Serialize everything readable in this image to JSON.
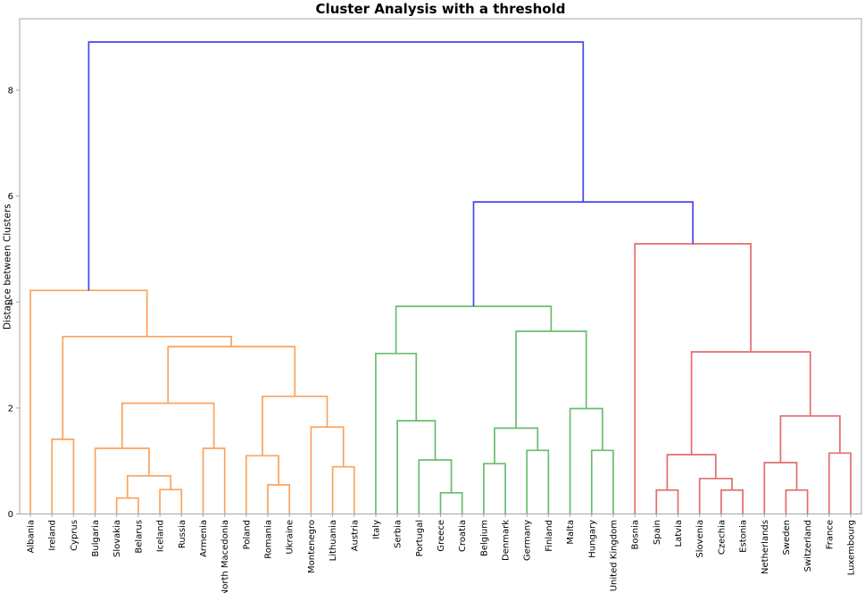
{
  "title": "Cluster Analysis with a threshold",
  "chart_data": {
    "type": "dendrogram",
    "title": "Cluster Analysis with a threshold",
    "xlabel": "",
    "ylabel": "Distance between Clusters",
    "yticks": [
      0,
      2,
      4,
      6,
      8
    ],
    "ylim": [
      0,
      9.35
    ],
    "grid": false,
    "legend": "none",
    "leaves": [
      "Albania",
      "Ireland",
      "Cyprus",
      "Bulgaria",
      "Slovakia",
      "Belarus",
      "Iceland",
      "Russia",
      "Armenia",
      "North Macedonia",
      "Poland",
      "Romania",
      "Ukraine",
      "Montenegro",
      "Lithuania",
      "Austria",
      "Italy",
      "Serbia",
      "Portugal",
      "Greece",
      "Croatia",
      "Belgium",
      "Denmark",
      "Germany",
      "Finland",
      "Malta",
      "Hungary",
      "United Kingdom",
      "Bosnia",
      "Spain",
      "Latvia",
      "Slovenia",
      "Czechia",
      "Estonia",
      "Netherlands",
      "Sweden",
      "Switzerland",
      "France",
      "Luxembourg"
    ],
    "colors": {
      "above_threshold": "#4646ee",
      "cluster1": "#fba35c",
      "cluster2": "#69bd6d",
      "cluster3": "#e36d6d",
      "axis": "#a6a6a6",
      "text": "#000000"
    },
    "links": [
      {
        "id": "O1",
        "a": "L4",
        "b": "L5",
        "h": 0.3,
        "c": "cluster1"
      },
      {
        "id": "O2",
        "a": "L6",
        "b": "L7",
        "h": 0.46,
        "c": "cluster1"
      },
      {
        "id": "O3",
        "a": "O1",
        "b": "O2",
        "h": 0.72,
        "c": "cluster1"
      },
      {
        "id": "O4",
        "a": "L3",
        "b": "O3",
        "h": 1.24,
        "c": "cluster1"
      },
      {
        "id": "O5",
        "a": "L8",
        "b": "L9",
        "h": 1.24,
        "c": "cluster1"
      },
      {
        "id": "O6",
        "a": "O4",
        "b": "O5",
        "h": 2.09,
        "c": "cluster1"
      },
      {
        "id": "O7",
        "a": "L11",
        "b": "L12",
        "h": 0.55,
        "c": "cluster1"
      },
      {
        "id": "O8",
        "a": "L10",
        "b": "O7",
        "h": 1.1,
        "c": "cluster1"
      },
      {
        "id": "O9",
        "a": "L14",
        "b": "L15",
        "h": 0.89,
        "c": "cluster1"
      },
      {
        "id": "O10",
        "a": "L13",
        "b": "O9",
        "h": 1.64,
        "c": "cluster1"
      },
      {
        "id": "O11",
        "a": "O8",
        "b": "O10",
        "h": 2.22,
        "c": "cluster1"
      },
      {
        "id": "O12",
        "a": "O6",
        "b": "O11",
        "h": 3.16,
        "c": "cluster1"
      },
      {
        "id": "O13",
        "a": "L1",
        "b": "L2",
        "h": 1.41,
        "c": "cluster1"
      },
      {
        "id": "O14",
        "a": "O13",
        "b": "O12",
        "h": 3.35,
        "c": "cluster1"
      },
      {
        "id": "O15",
        "a": "L0",
        "b": "O14",
        "h": 4.22,
        "c": "cluster1"
      },
      {
        "id": "G1",
        "a": "L19",
        "b": "L20",
        "h": 0.4,
        "c": "cluster2"
      },
      {
        "id": "G2",
        "a": "L18",
        "b": "G1",
        "h": 1.02,
        "c": "cluster2"
      },
      {
        "id": "G3",
        "a": "L17",
        "b": "G2",
        "h": 1.76,
        "c": "cluster2"
      },
      {
        "id": "G4",
        "a": "L16",
        "b": "G3",
        "h": 3.03,
        "c": "cluster2"
      },
      {
        "id": "G5",
        "a": "L21",
        "b": "L22",
        "h": 0.95,
        "c": "cluster2"
      },
      {
        "id": "G6",
        "a": "L23",
        "b": "L24",
        "h": 1.2,
        "c": "cluster2"
      },
      {
        "id": "G7",
        "a": "G5",
        "b": "G6",
        "h": 1.62,
        "c": "cluster2"
      },
      {
        "id": "G8",
        "a": "L26",
        "b": "L27",
        "h": 1.2,
        "c": "cluster2"
      },
      {
        "id": "G9",
        "a": "L25",
        "b": "G8",
        "h": 1.99,
        "c": "cluster2"
      },
      {
        "id": "G10",
        "a": "G7",
        "b": "G9",
        "h": 3.45,
        "c": "cluster2"
      },
      {
        "id": "G11",
        "a": "G4",
        "b": "G10",
        "h": 3.92,
        "c": "cluster2"
      },
      {
        "id": "R1",
        "a": "L29",
        "b": "L30",
        "h": 0.45,
        "c": "cluster3"
      },
      {
        "id": "R2",
        "a": "L32",
        "b": "L33",
        "h": 0.45,
        "c": "cluster3"
      },
      {
        "id": "R3",
        "a": "L31",
        "b": "R2",
        "h": 0.67,
        "c": "cluster3"
      },
      {
        "id": "R4",
        "a": "R1",
        "b": "R3",
        "h": 1.12,
        "c": "cluster3"
      },
      {
        "id": "R5",
        "a": "L35",
        "b": "L36",
        "h": 0.45,
        "c": "cluster3"
      },
      {
        "id": "R6",
        "a": "L34",
        "b": "R5",
        "h": 0.97,
        "c": "cluster3"
      },
      {
        "id": "R7",
        "a": "L37",
        "b": "L38",
        "h": 1.15,
        "c": "cluster3"
      },
      {
        "id": "R8",
        "a": "R6",
        "b": "R7",
        "h": 1.85,
        "c": "cluster3"
      },
      {
        "id": "R9",
        "a": "R4",
        "b": "R8",
        "h": 3.06,
        "c": "cluster3"
      },
      {
        "id": "R10",
        "a": "L28",
        "b": "R9",
        "h": 5.1,
        "c": "cluster3"
      },
      {
        "id": "B1",
        "a": "G11",
        "b": "R10",
        "h": 5.89,
        "c": "above_threshold"
      },
      {
        "id": "B2",
        "a": "O15",
        "b": "B1",
        "h": 8.91,
        "c": "above_threshold"
      }
    ]
  }
}
